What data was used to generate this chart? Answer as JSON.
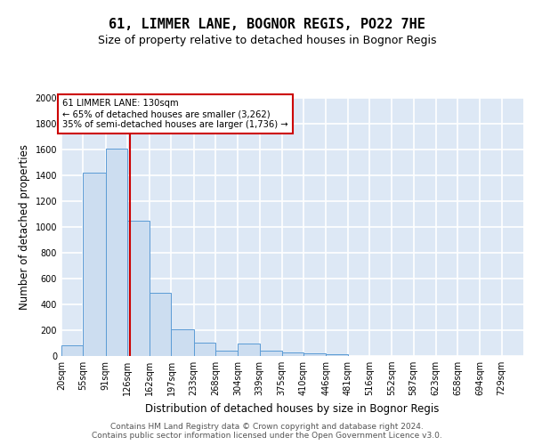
{
  "title": "61, LIMMER LANE, BOGNOR REGIS, PO22 7HE",
  "subtitle": "Size of property relative to detached houses in Bognor Regis",
  "xlabel": "Distribution of detached houses by size in Bognor Regis",
  "ylabel": "Number of detached properties",
  "bins": [
    20,
    55,
    91,
    126,
    162,
    197,
    233,
    268,
    304,
    339,
    375,
    410,
    446,
    481,
    516,
    552,
    587,
    623,
    658,
    694,
    729
  ],
  "values": [
    80,
    1420,
    1610,
    1050,
    490,
    205,
    105,
    40,
    100,
    40,
    27,
    20,
    15,
    0,
    0,
    0,
    0,
    0,
    0,
    0
  ],
  "bar_color": "#ccddf0",
  "bar_edge_color": "#5b9bd5",
  "property_line_x": 130,
  "vline_color": "#cc0000",
  "annotation_text": "61 LIMMER LANE: 130sqm\n← 65% of detached houses are smaller (3,262)\n35% of semi-detached houses are larger (1,736) →",
  "annotation_box_facecolor": "#ffffff",
  "annotation_box_edgecolor": "#cc0000",
  "bg_color": "#dde8f5",
  "grid_color": "#ffffff",
  "footer_text": "Contains HM Land Registry data © Crown copyright and database right 2024.\nContains public sector information licensed under the Open Government Licence v3.0.",
  "ylim": [
    0,
    2000
  ],
  "yticks": [
    0,
    200,
    400,
    600,
    800,
    1000,
    1200,
    1400,
    1600,
    1800,
    2000
  ],
  "title_fontsize": 11,
  "subtitle_fontsize": 9,
  "tick_fontsize": 7,
  "ylabel_fontsize": 8.5,
  "xlabel_fontsize": 8.5
}
